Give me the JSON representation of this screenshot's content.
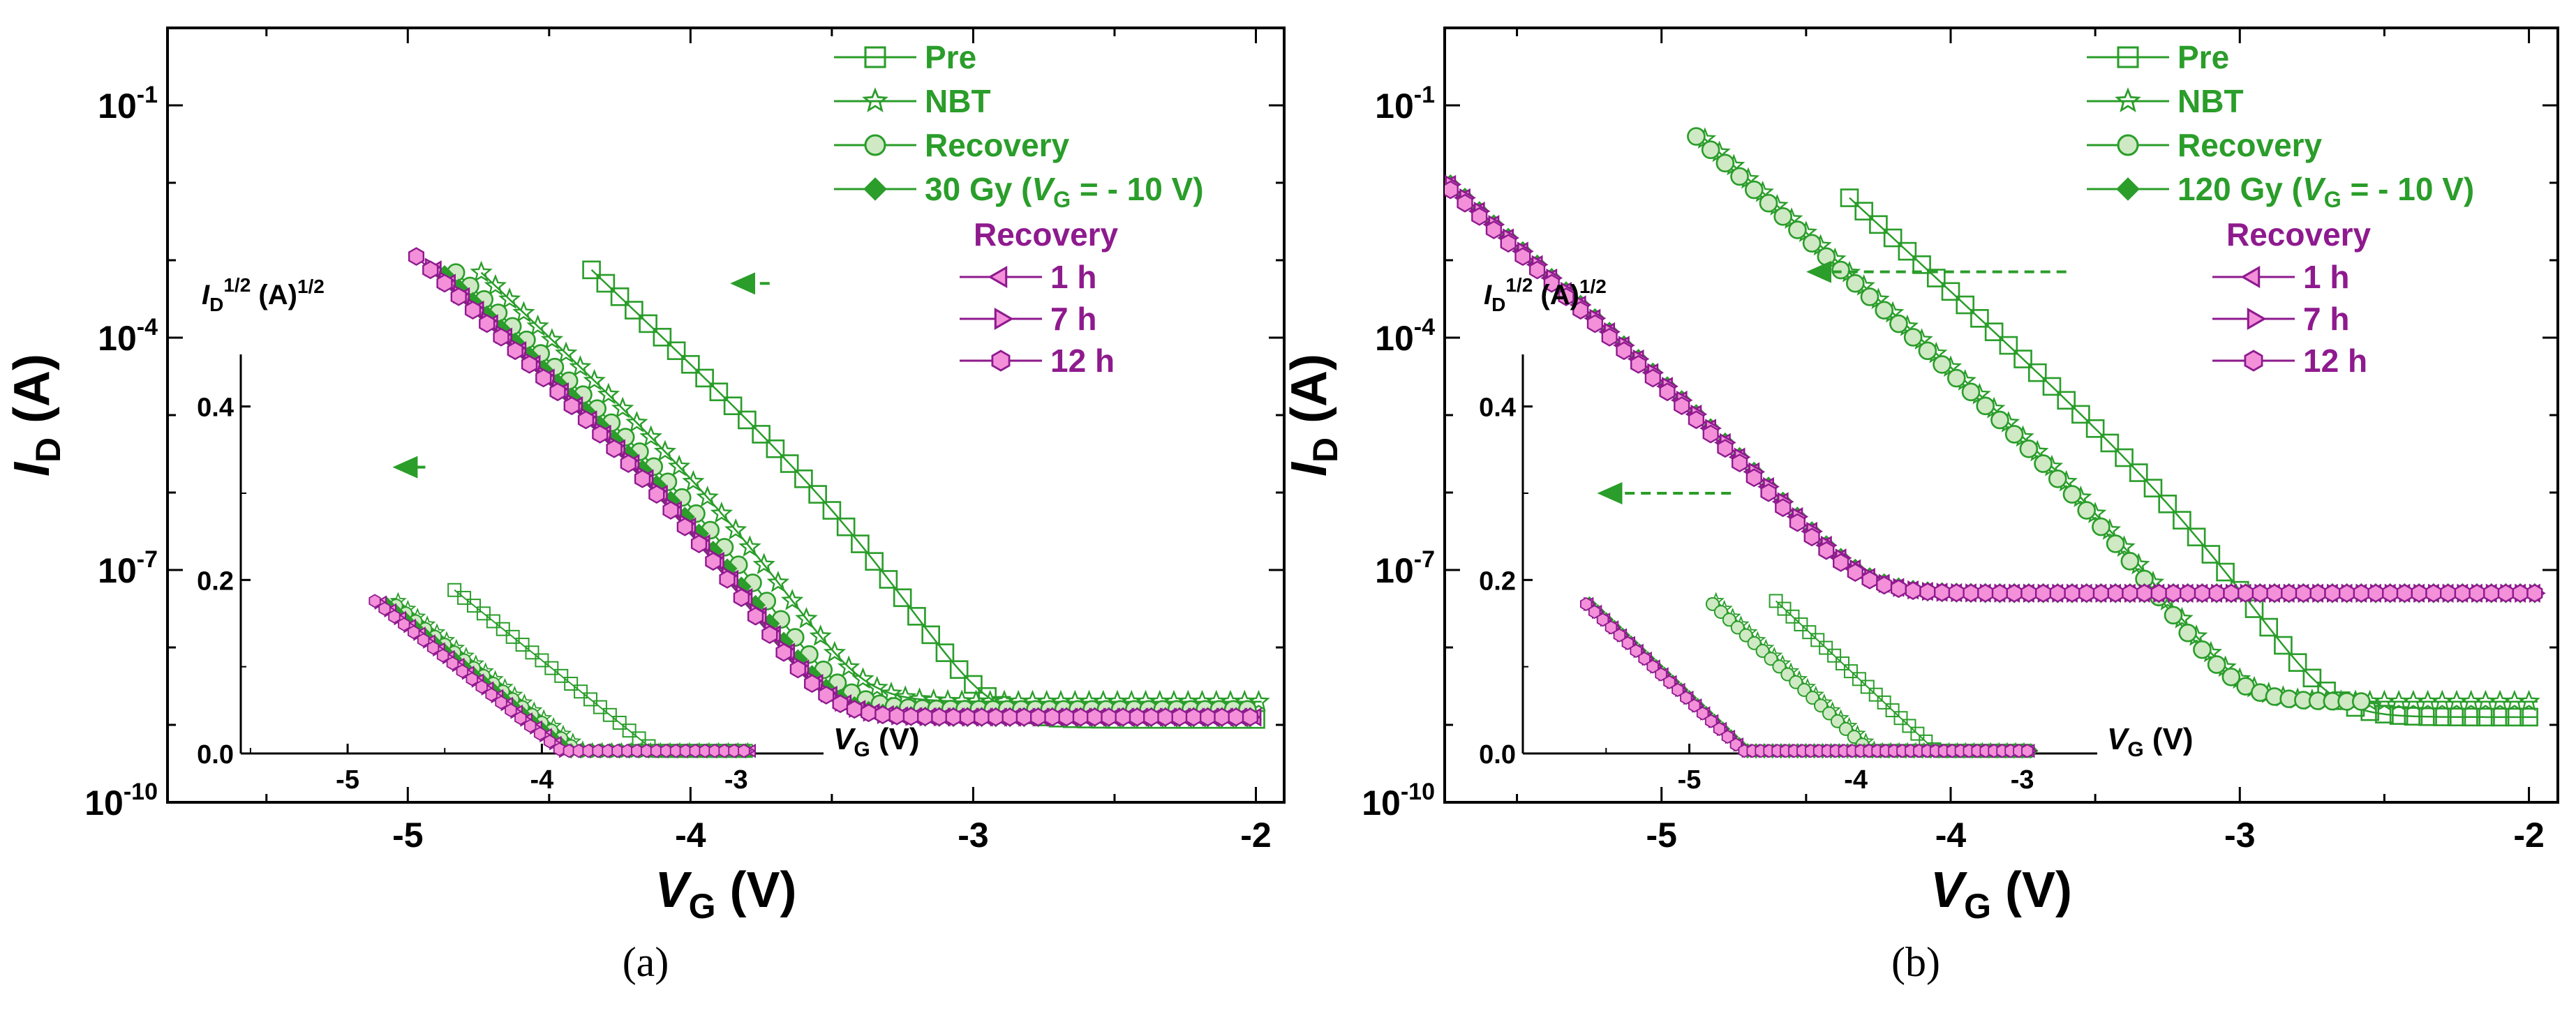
{
  "captions": {
    "a": "(a)",
    "b": "(b)"
  },
  "colors": {
    "green": "#2a9d2a",
    "purple": "#8e1a8e",
    "pink": "#f48fd9",
    "arrow": "#2a9d2a"
  },
  "chart_data": [
    {
      "type": "line",
      "panel": "a",
      "ylabel": {
        "main": "I",
        "sub": "D",
        "suffix": " (A)"
      },
      "xlabel": {
        "main": "V",
        "sub": "G",
        "suffix": " (V)"
      },
      "xlim": [
        -5.85,
        -1.9
      ],
      "ylim_log10": [
        -10,
        0
      ],
      "xticks": [
        -5,
        -4,
        -3,
        -2
      ],
      "xtick_labels": [
        "-5",
        "-4",
        "-3",
        "-2"
      ],
      "yticks_log10": [
        -1,
        -4,
        -7,
        -10
      ],
      "ytick_labels": [
        {
          "base": "10",
          "exp": "-1"
        },
        {
          "base": "10",
          "exp": "-4"
        },
        {
          "base": "10",
          "exp": "-7"
        },
        {
          "base": "10",
          "exp": "-10"
        }
      ],
      "legend": {
        "entries": [
          {
            "label": "Pre",
            "marker": "square-open",
            "color": "green"
          },
          {
            "label": "NBT",
            "marker": "star-open",
            "color": "green"
          },
          {
            "label": "Recovery",
            "marker": "circle",
            "color": "green"
          },
          {
            "label_pre": "30 Gy (",
            "label_it": "V",
            "label_sub": "G",
            "label_post": " = - 10 V)",
            "marker": "diamond-filled",
            "color": "green"
          }
        ],
        "group_title": "Recovery",
        "recovery_entries": [
          {
            "label": "1 h",
            "marker": "triangle-left",
            "color": "purple"
          },
          {
            "label": "7 h",
            "marker": "triangle-right",
            "color": "purple"
          },
          {
            "label": "12 h",
            "marker": "hexagon",
            "color": "purple"
          }
        ]
      },
      "series": [
        {
          "name": "Pre",
          "vth": -3.37,
          "s": 0.1934,
          "off_log10": -8.93,
          "x_min": -4.35,
          "x_max": -1.98,
          "marker": "square-open",
          "color": "green"
        },
        {
          "name": "NBT",
          "vth": -3.77,
          "s": 0.1934,
          "off_log10": -8.7,
          "x_min": -4.74,
          "x_max": -1.98,
          "marker": "star-open",
          "color": "green"
        },
        {
          "name": "Recovery",
          "vth": -3.86,
          "s": 0.1934,
          "off_log10": -8.8,
          "x_min": -4.83,
          "x_max": -2.0,
          "marker": "circle",
          "color": "green"
        },
        {
          "name": "30 Gy (VG = - 10 V)",
          "vth": -3.91,
          "s": 0.1934,
          "off_log10": -8.9,
          "x_min": -4.87,
          "x_max": -2.0,
          "marker": "diamond-filled",
          "color": "green"
        },
        {
          "name": "1 h",
          "vth": -3.92,
          "s": 0.1934,
          "off_log10": -8.9,
          "x_min": -4.9,
          "x_max": -2.0,
          "marker": "triangle-left",
          "color": "purple"
        },
        {
          "name": "7 h",
          "vth": -3.93,
          "s": 0.1934,
          "off_log10": -8.9,
          "x_min": -4.92,
          "x_max": -2.0,
          "marker": "triangle-right",
          "color": "purple"
        },
        {
          "name": "12 h",
          "vth": -3.94,
          "s": 0.1934,
          "off_log10": -8.9,
          "x_min": -4.97,
          "x_max": -2.0,
          "marker": "hexagon",
          "color": "purple"
        }
      ],
      "arrows": [
        {
          "x1": -3.72,
          "x2": -3.84,
          "y_log10": -3.3
        }
      ],
      "inset": {
        "ylabel": {
          "main": "I",
          "sub": "D",
          "sup": "1/2",
          "suffix": " (A)",
          "sup2": "1/2"
        },
        "xlabel": {
          "main": "V",
          "sub": "G",
          "suffix": " (V)"
        },
        "xlim": [
          -5.55,
          -2.55
        ],
        "ylim": [
          0,
          0.46
        ],
        "xticks": [
          -5,
          -4,
          -3
        ],
        "xtick_labels": [
          "-5",
          "-4",
          "-3"
        ],
        "yticks": [
          0,
          0.2,
          0.4
        ],
        "ytick_labels": [
          "0.0",
          "0.2",
          "0.4"
        ],
        "series": [
          {
            "name": "Pre",
            "vt": -3.42,
            "k": 0.18,
            "x_min": -4.45,
            "x_max": -2.92
          },
          {
            "name": "NBT",
            "vt": -3.78,
            "k": 0.18,
            "x_min": -4.74,
            "x_max": -2.92
          },
          {
            "name": "Recovery",
            "vt": -3.82,
            "k": 0.18,
            "x_min": -4.75,
            "x_max": -2.92
          },
          {
            "name": "30 Gy (VG = - 10 V)",
            "vt": -3.86,
            "k": 0.18,
            "x_min": -4.8,
            "x_max": -2.92
          },
          {
            "name": "1 h",
            "vt": -3.87,
            "k": 0.18,
            "x_min": -4.82,
            "x_max": -2.92
          },
          {
            "name": "7 h",
            "vt": -3.89,
            "k": 0.18,
            "x_min": -4.84,
            "x_max": -2.92
          },
          {
            "name": "12 h",
            "vt": -3.9,
            "k": 0.18,
            "x_min": -4.86,
            "x_max": -2.92
          }
        ],
        "arrows": [
          {
            "x1": -4.6,
            "x2": -4.74,
            "y": 0.33
          }
        ]
      }
    },
    {
      "type": "line",
      "panel": "b",
      "ylabel": {
        "main": "I",
        "sub": "D",
        "suffix": " (A)"
      },
      "xlabel": {
        "main": "V",
        "sub": "G",
        "suffix": " (V)"
      },
      "xlim": [
        -5.75,
        -1.9
      ],
      "ylim_log10": [
        -10,
        0
      ],
      "xticks": [
        -5,
        -4,
        -3,
        -2
      ],
      "xtick_labels": [
        "-5",
        "-4",
        "-3",
        "-2"
      ],
      "yticks_log10": [
        -1,
        -4,
        -7,
        -10
      ],
      "ytick_labels": [
        {
          "base": "10",
          "exp": "-1"
        },
        {
          "base": "10",
          "exp": "-4"
        },
        {
          "base": "10",
          "exp": "-7"
        },
        {
          "base": "10",
          "exp": "-10"
        }
      ],
      "legend": {
        "entries": [
          {
            "label": "Pre",
            "marker": "square-open",
            "color": "green"
          },
          {
            "label": "NBT",
            "marker": "star-open",
            "color": "green"
          },
          {
            "label": "Recovery",
            "marker": "circle",
            "color": "green"
          },
          {
            "label_pre": "120 Gy (",
            "label_it": "V",
            "label_sub": "G",
            "label_post": " = - 10 V)",
            "marker": "diamond-filled",
            "color": "green"
          }
        ],
        "group_title": "Recovery",
        "recovery_entries": [
          {
            "label": "1 h",
            "marker": "triangle-left",
            "color": "purple"
          },
          {
            "label": "7 h",
            "marker": "triangle-right",
            "color": "purple"
          },
          {
            "label": "12 h",
            "marker": "hexagon",
            "color": "purple"
          }
        ]
      },
      "series": [
        {
          "name": "Pre",
          "vth": -3.1,
          "s": 0.1935,
          "off_log10": -8.9,
          "x_min": -4.35,
          "x_max": -1.97,
          "marker": "square-open",
          "color": "green"
        },
        {
          "name": "NBT",
          "vth": -3.38,
          "s": 0.1935,
          "off_log10": -8.7,
          "x_min": -4.85,
          "x_max": -1.97,
          "marker": "star-open",
          "color": "green"
        },
        {
          "name": "Recovery",
          "vth": -3.4,
          "s": 0.1935,
          "off_log10": -8.7,
          "x_min": -4.88,
          "x_max": -2.54,
          "marker": "circle",
          "color": "green"
        },
        {
          "name": "120 Gy (VG = - 10 V)",
          "vth": -4.43,
          "s": 0.1935,
          "off_log10": -7.3,
          "x_min": -5.73,
          "x_max": -1.95,
          "marker": "diamond-filled",
          "color": "green"
        },
        {
          "name": "1 h",
          "vth": -4.43,
          "s": 0.1935,
          "off_log10": -7.3,
          "x_min": -5.73,
          "x_max": -1.95,
          "marker": "triangle-left",
          "color": "purple"
        },
        {
          "name": "7 h",
          "vth": -4.43,
          "s": 0.1935,
          "off_log10": -7.3,
          "x_min": -5.73,
          "x_max": -1.95,
          "marker": "triangle-right",
          "color": "purple"
        },
        {
          "name": "12 h",
          "vth": -4.45,
          "s": 0.1935,
          "off_log10": -7.3,
          "x_min": -5.73,
          "x_max": -1.95,
          "marker": "hexagon",
          "color": "purple"
        }
      ],
      "arrows": [
        {
          "x1": -3.6,
          "x2": -4.48,
          "y_log10": -3.15
        }
      ],
      "inset": {
        "ylabel": {
          "main": "I",
          "sub": "D",
          "sup": "1/2",
          "suffix": " (A)",
          "sup2": "1/2"
        },
        "xlabel": {
          "main": "V",
          "sub": "G",
          "suffix": " (V)"
        },
        "xlim": [
          -6.0,
          -2.55
        ],
        "ylim": [
          0,
          0.46
        ],
        "xticks": [
          -5,
          -4,
          -3
        ],
        "xtick_labels": [
          "-5",
          "-4",
          "-3"
        ],
        "yticks": [
          0,
          0.2,
          0.4
        ],
        "ytick_labels": [
          "0.0",
          "0.2",
          "0.4"
        ],
        "series": [
          {
            "name": "Pre",
            "vt": -3.52,
            "k": 0.18,
            "x_min": -4.48,
            "x_max": -2.95
          },
          {
            "name": "NBT",
            "vt": -3.88,
            "k": 0.18,
            "x_min": -4.84,
            "x_max": -2.95
          },
          {
            "name": "Recovery",
            "vt": -3.92,
            "k": 0.18,
            "x_min": -4.86,
            "x_max": -2.95
          },
          {
            "name": "120 Gy (VG = - 10 V)",
            "vt": -4.66,
            "k": 0.18,
            "x_min": -5.6,
            "x_max": -2.95
          },
          {
            "name": "1 h",
            "vt": -4.66,
            "k": 0.18,
            "x_min": -5.6,
            "x_max": -2.95
          },
          {
            "name": "7 h",
            "vt": -4.67,
            "k": 0.18,
            "x_min": -5.61,
            "x_max": -2.95
          },
          {
            "name": "12 h",
            "vt": -4.68,
            "k": 0.18,
            "x_min": -5.62,
            "x_max": -2.95
          }
        ],
        "arrows": [
          {
            "x1": -4.75,
            "x2": -5.52,
            "y": 0.3
          }
        ]
      }
    }
  ]
}
